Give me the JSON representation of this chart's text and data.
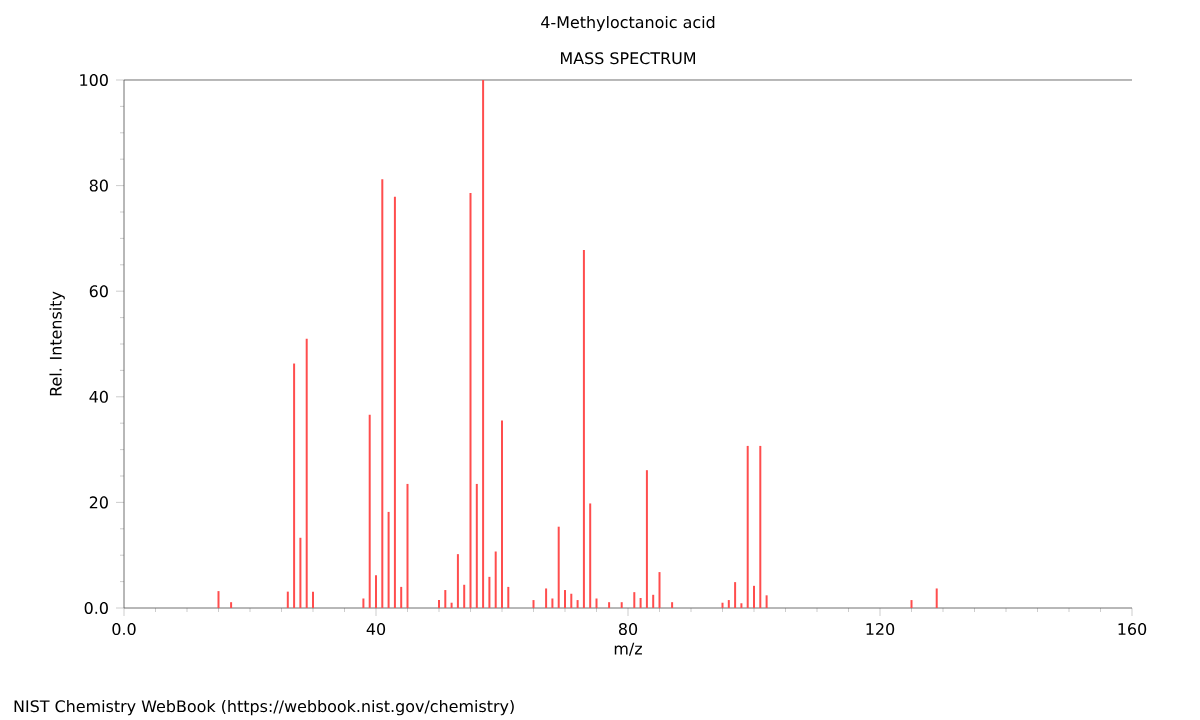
{
  "chart_data": {
    "type": "bar",
    "title": "4-Methyloctanoic acid",
    "subtitle": "MASS SPECTRUM",
    "xlabel": "m/z",
    "ylabel": "Rel. Intensity",
    "x": [
      15,
      17,
      26,
      27,
      28,
      29,
      30,
      38,
      39,
      40,
      41,
      42,
      43,
      44,
      45,
      50,
      51,
      52,
      53,
      54,
      55,
      56,
      57,
      58,
      59,
      60,
      61,
      65,
      67,
      68,
      69,
      70,
      71,
      72,
      73,
      74,
      75,
      77,
      79,
      81,
      82,
      83,
      84,
      85,
      87,
      95,
      96,
      97,
      98,
      99,
      100,
      101,
      102,
      125,
      129
    ],
    "values": [
      3.2,
      1.1,
      3.1,
      46.3,
      13.3,
      51,
      3.1,
      1.8,
      36.6,
      6.2,
      81.2,
      18.2,
      77.9,
      4,
      23.5,
      1.5,
      3.4,
      1,
      10.2,
      4.4,
      78.6,
      23.5,
      100,
      5.9,
      10.7,
      35.5,
      4,
      1.5,
      3.7,
      1.8,
      15.4,
      3.4,
      2.7,
      1.5,
      67.8,
      19.8,
      1.8,
      1.1,
      1.1,
      3,
      1.9,
      26.1,
      2.5,
      6.8,
      1.1,
      1,
      1.5,
      4.9,
      0.9,
      30.7,
      4.2,
      30.7,
      2.4,
      1.5,
      3.7
    ],
    "color": "#ff4d4d",
    "xlim": [
      0,
      160
    ],
    "ylim": [
      0,
      100
    ],
    "xticks": [
      {
        "value": 0,
        "label": "0.0"
      },
      40,
      80,
      120,
      160
    ],
    "yticks": [
      {
        "value": 0,
        "label": "0.0"
      },
      20,
      40,
      60,
      80,
      100
    ],
    "grid": false,
    "annotations": [
      "NIST Chemistry WebBook (https://webbook.nist.gov/chemistry)"
    ]
  }
}
